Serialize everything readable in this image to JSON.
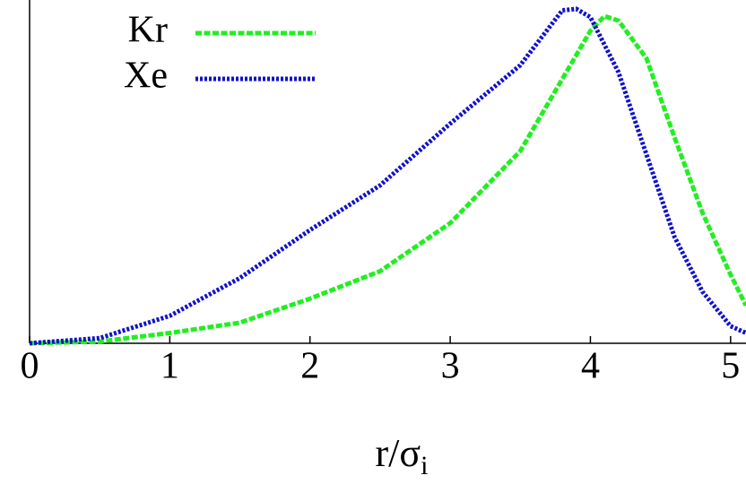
{
  "chart_data": {
    "type": "line",
    "xlabel": "r/σ",
    "xlabel_sub": "i",
    "xlim": [
      0,
      5.11
    ],
    "ylim": [
      0,
      1
    ],
    "xticks": [
      0,
      1,
      2,
      3,
      4,
      5
    ],
    "legend": "top-left",
    "series": [
      {
        "name": "Kr",
        "color": "#22ee22",
        "dash": "7,2.5",
        "x": [
          0,
          0.5,
          1,
          1.5,
          2,
          2.5,
          3,
          3.5,
          3.8,
          4.0,
          4.1,
          4.2,
          4.4,
          4.6,
          4.8,
          5.0,
          5.11
        ],
        "values": [
          0,
          0.005,
          0.03,
          0.06,
          0.13,
          0.21,
          0.35,
          0.56,
          0.77,
          0.91,
          0.953,
          0.94,
          0.83,
          0.6,
          0.38,
          0.2,
          0.11
        ]
      },
      {
        "name": "Xe",
        "color": "#1111cc",
        "dash": "3,2",
        "x": [
          0,
          0.5,
          1,
          1.5,
          2,
          2.5,
          3,
          3.5,
          3.8,
          3.9,
          4.0,
          4.2,
          4.4,
          4.6,
          4.8,
          5.0,
          5.11
        ],
        "values": [
          0,
          0.015,
          0.08,
          0.19,
          0.33,
          0.46,
          0.64,
          0.81,
          0.97,
          0.974,
          0.95,
          0.79,
          0.55,
          0.31,
          0.15,
          0.05,
          0.03
        ]
      }
    ]
  }
}
